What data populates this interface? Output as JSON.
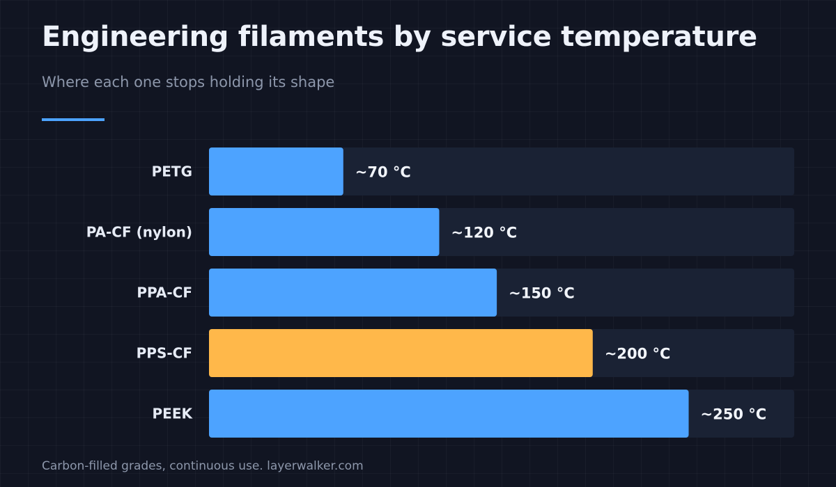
{
  "header": {
    "title": "Engineering filaments by service temperature",
    "subtitle": "Where each one stops holding its shape"
  },
  "footer": {
    "note": "Carbon-filled grades, continuous use. layerwalker.com"
  },
  "colors": {
    "background": "#111522",
    "track": "#1a2234",
    "bar_default": "#4da3ff",
    "bar_highlight": "#ffb84a",
    "accent": "#4da3ff"
  },
  "chart_data": {
    "type": "bar",
    "orientation": "horizontal",
    "title": "Engineering filaments by service temperature",
    "subtitle": "Where each one stops holding its shape",
    "categories": [
      "PETG",
      "PA-CF (nylon)",
      "PPA-CF",
      "PPS-CF",
      "PEEK"
    ],
    "values": [
      70,
      120,
      150,
      200,
      250
    ],
    "value_labels": [
      "~70 °C",
      "~120 °C",
      "~150 °C",
      "~200 °C",
      "~250 °C"
    ],
    "highlight": "PPS-CF",
    "xlim": [
      0,
      305
    ],
    "grid": false,
    "legend": "none"
  }
}
